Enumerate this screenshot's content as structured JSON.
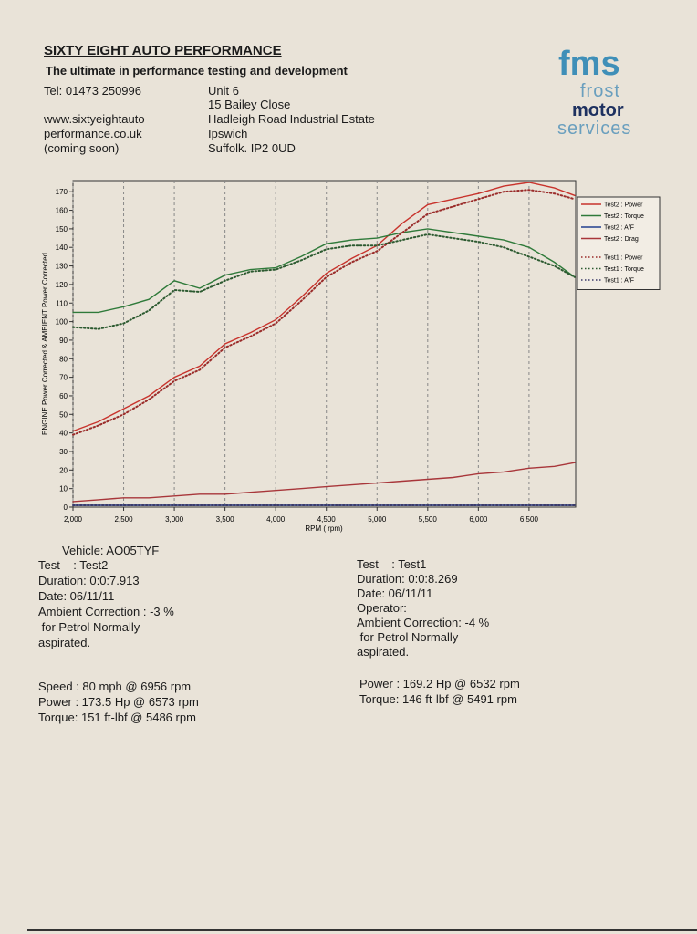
{
  "header": {
    "company": "SIXTY EIGHT AUTO PERFORMANCE",
    "tagline": "The ultimate in performance testing and development",
    "tel": "Tel: 01473 250996",
    "website": [
      "www.sixtyeightauto",
      "performance.co.uk",
      "(coming soon)"
    ],
    "address": [
      "Unit 6",
      "15 Bailey Close",
      "Hadleigh Road Industrial Estate",
      "Ipswich",
      "Suffolk. IP2 0UD"
    ]
  },
  "logo": [
    "fms",
    "frost",
    "motor",
    "services"
  ],
  "chart_data": {
    "type": "line",
    "y_label": "ENGINE Power Corrected & AMBIENT Power Corrected",
    "x_label": "RPM ( rpm)",
    "x": [
      2000,
      2250,
      2500,
      2750,
      3000,
      3250,
      3500,
      3750,
      4000,
      4250,
      4500,
      4750,
      5000,
      5250,
      5500,
      5750,
      6000,
      6250,
      6500,
      6750,
      6950
    ],
    "xlim": [
      2000,
      6960
    ],
    "xticks": [
      {
        "value": 2000,
        "label": "2,000"
      },
      {
        "value": 2500,
        "label": "2,500"
      },
      {
        "value": 3000,
        "label": "3,000"
      },
      {
        "value": 3500,
        "label": "3,500"
      },
      {
        "value": 4000,
        "label": "4,000"
      },
      {
        "value": 4500,
        "label": "4,500"
      },
      {
        "value": 5000,
        "label": "5,000"
      },
      {
        "value": 5500,
        "label": "5,500"
      },
      {
        "value": 6000,
        "label": "6,000"
      },
      {
        "value": 6500,
        "label": "6,500"
      }
    ],
    "ylim": [
      0,
      176
    ],
    "yticks": [
      0,
      10,
      20,
      30,
      40,
      50,
      60,
      70,
      80,
      90,
      100,
      110,
      120,
      130,
      140,
      150,
      160,
      170
    ],
    "grid": "x",
    "legend": "right",
    "series": [
      {
        "name": "Test2 : Power",
        "color": "#c8332c",
        "dash": "solid",
        "values": [
          41,
          46,
          53,
          60,
          70,
          76,
          88,
          94,
          101,
          113,
          126,
          134,
          141,
          153,
          163,
          166,
          169,
          173,
          175,
          172,
          168
        ]
      },
      {
        "name": "Test2 : Torque",
        "color": "#2f7a3a",
        "dash": "solid",
        "values": [
          105,
          105,
          108,
          112,
          122,
          118,
          125,
          128,
          129,
          135,
          142,
          144,
          145,
          148,
          150,
          148,
          146,
          144,
          140,
          132,
          124
        ]
      },
      {
        "name": "Test2 : A/F",
        "color": "#23408e",
        "dash": "solid",
        "values": [
          1,
          1,
          1,
          1,
          1,
          1,
          1,
          1,
          1,
          1,
          1,
          1,
          1,
          1,
          1,
          1,
          1,
          1,
          1,
          1,
          1
        ]
      },
      {
        "name": "Test2 : Drag",
        "color": "#a8363a",
        "dash": "solid",
        "values": [
          3,
          4,
          5,
          5,
          6,
          7,
          7,
          8,
          9,
          10,
          11,
          12,
          13,
          14,
          15,
          16,
          18,
          19,
          21,
          22,
          24
        ]
      },
      {
        "name": "Test1 : Power",
        "color": "#9a2c2a",
        "dash": "dotted",
        "values": [
          39,
          44,
          50,
          58,
          68,
          74,
          86,
          92,
          99,
          111,
          124,
          132,
          138,
          148,
          158,
          162,
          166,
          170,
          171,
          169,
          166
        ]
      },
      {
        "name": "Test1 : Torque",
        "color": "#2c5a30",
        "dash": "dotted",
        "values": [
          97,
          96,
          99,
          106,
          117,
          116,
          122,
          127,
          128,
          133,
          139,
          141,
          141,
          144,
          147,
          145,
          143,
          140,
          135,
          130,
          124
        ]
      },
      {
        "name": "Test1 : A/F",
        "color": "#3a3a6a",
        "dash": "dotted",
        "values": [
          1,
          1,
          1,
          1,
          1,
          1,
          1,
          1,
          1,
          1,
          1,
          1,
          1,
          1,
          1,
          1,
          1,
          1,
          1,
          1,
          1
        ]
      }
    ]
  },
  "report": {
    "vehicle": "Vehicle: AO05TYF",
    "test2": [
      "Test    : Test2",
      "Duration: 0:0:7.913",
      "Date: 06/11/11",
      "Ambient Correction : -3 %",
      " for Petrol Normally",
      "aspirated."
    ],
    "test1": [
      "Test    : Test1",
      "Duration: 0:0:8.269",
      "Date: 06/11/11",
      "Operator:",
      "Ambient Correction: -4 %",
      " for Petrol Normally",
      "aspirated."
    ],
    "results2": [
      "Speed : 80 mph @ 6956 rpm",
      "Power : 173.5 Hp @ 6573 rpm",
      "Torque: 151 ft-lbf @ 5486 rpm"
    ],
    "results1": [
      "Power : 169.2 Hp @ 6532 rpm",
      "Torque: 146 ft-lbf @ 5491 rpm"
    ]
  }
}
